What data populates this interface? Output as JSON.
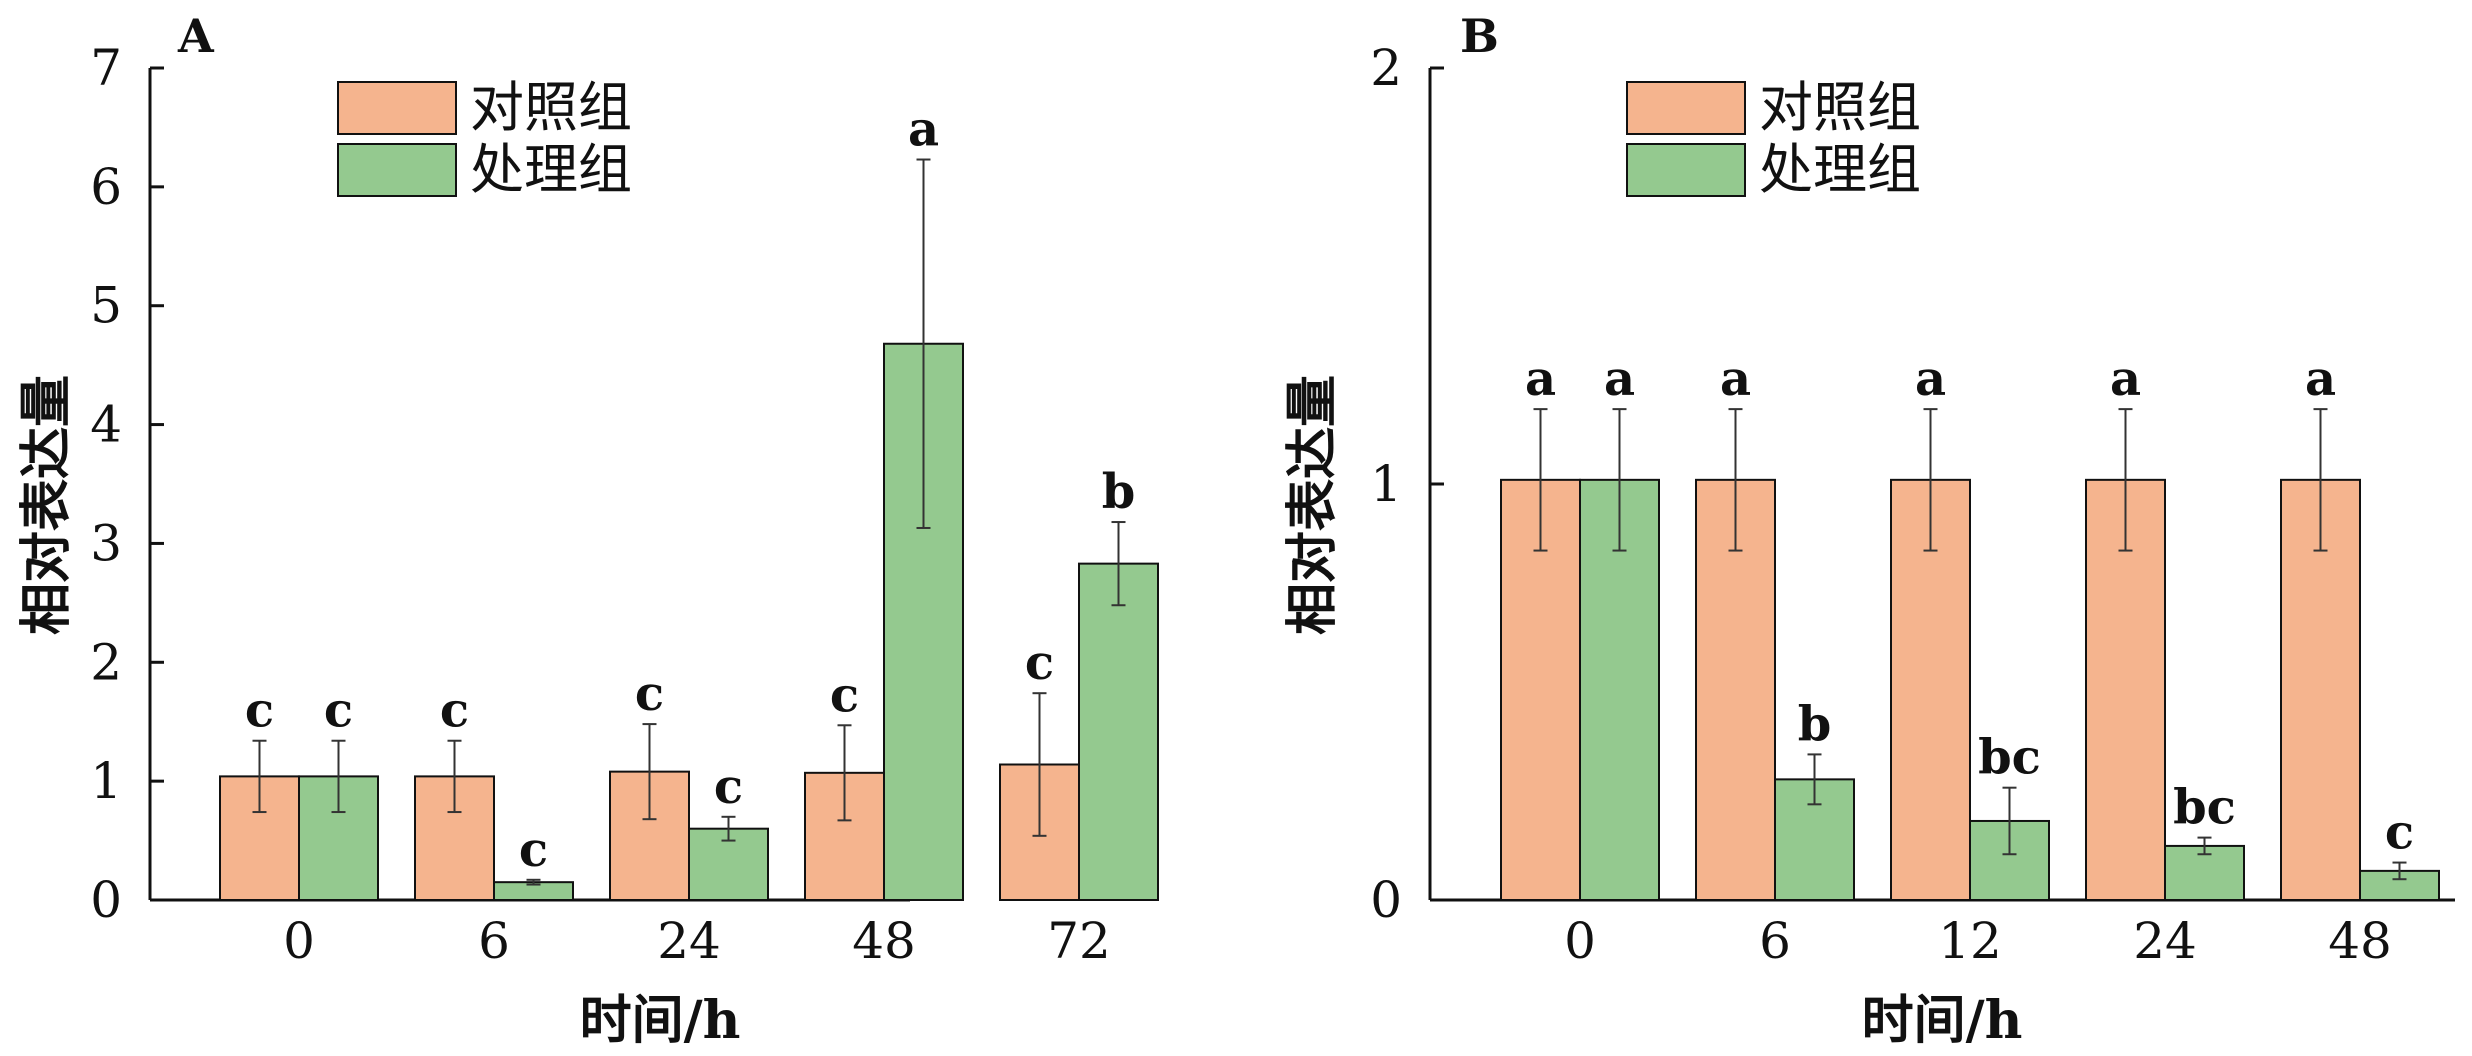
{
  "colors": {
    "control": "#f5b48e",
    "treatment": "#94c98f",
    "axis": "#111111"
  },
  "chart_data": [
    {
      "panel": "A",
      "type": "bar",
      "xlabel": "时间/h",
      "ylabel": "相对表达量",
      "ylim": [
        0,
        7
      ],
      "yticks": [
        0,
        1,
        2,
        3,
        4,
        5,
        6,
        7
      ],
      "categories": [
        "0",
        "6",
        "24",
        "48",
        "72"
      ],
      "legend_position": "top-left",
      "series": [
        {
          "name": "对照组",
          "values": [
            1.04,
            1.04,
            1.08,
            1.07,
            1.14
          ],
          "errors": [
            0.3,
            0.3,
            0.4,
            0.4,
            0.6
          ],
          "labels": [
            "c",
            "c",
            "c",
            "c",
            "c"
          ]
        },
        {
          "name": "处理组",
          "values": [
            1.04,
            0.15,
            0.6,
            4.68,
            2.83
          ],
          "errors": [
            0.3,
            0.02,
            0.1,
            1.55,
            0.35
          ],
          "labels": [
            "c",
            "c",
            "c",
            "a",
            "b"
          ]
        }
      ]
    },
    {
      "panel": "B",
      "type": "bar",
      "xlabel": "时间/h",
      "ylabel": "相对表达量",
      "ylim": [
        0,
        2
      ],
      "yticks": [
        0,
        1,
        2
      ],
      "categories": [
        "0",
        "6",
        "12",
        "24",
        "48"
      ],
      "legend_position": "top-left",
      "series": [
        {
          "name": "对照组",
          "values": [
            1.01,
            1.01,
            1.01,
            1.01,
            1.01
          ],
          "errors": [
            0.17,
            0.17,
            0.17,
            0.17,
            0.17
          ],
          "labels": [
            "a",
            "",
            "",
            "",
            ""
          ]
        },
        {
          "name": "处理组",
          "values": [
            1.01,
            0.29,
            0.19,
            0.13,
            0.07
          ],
          "errors": [
            0.17,
            0.06,
            0.08,
            0.02,
            0.02
          ],
          "labels": [
            "a",
            "b",
            "bc",
            "bc",
            "c"
          ]
        }
      ]
    }
  ],
  "panel_top_labels": [
    [
      "a",
      "a",
      "a",
      "a",
      "a"
    ]
  ]
}
